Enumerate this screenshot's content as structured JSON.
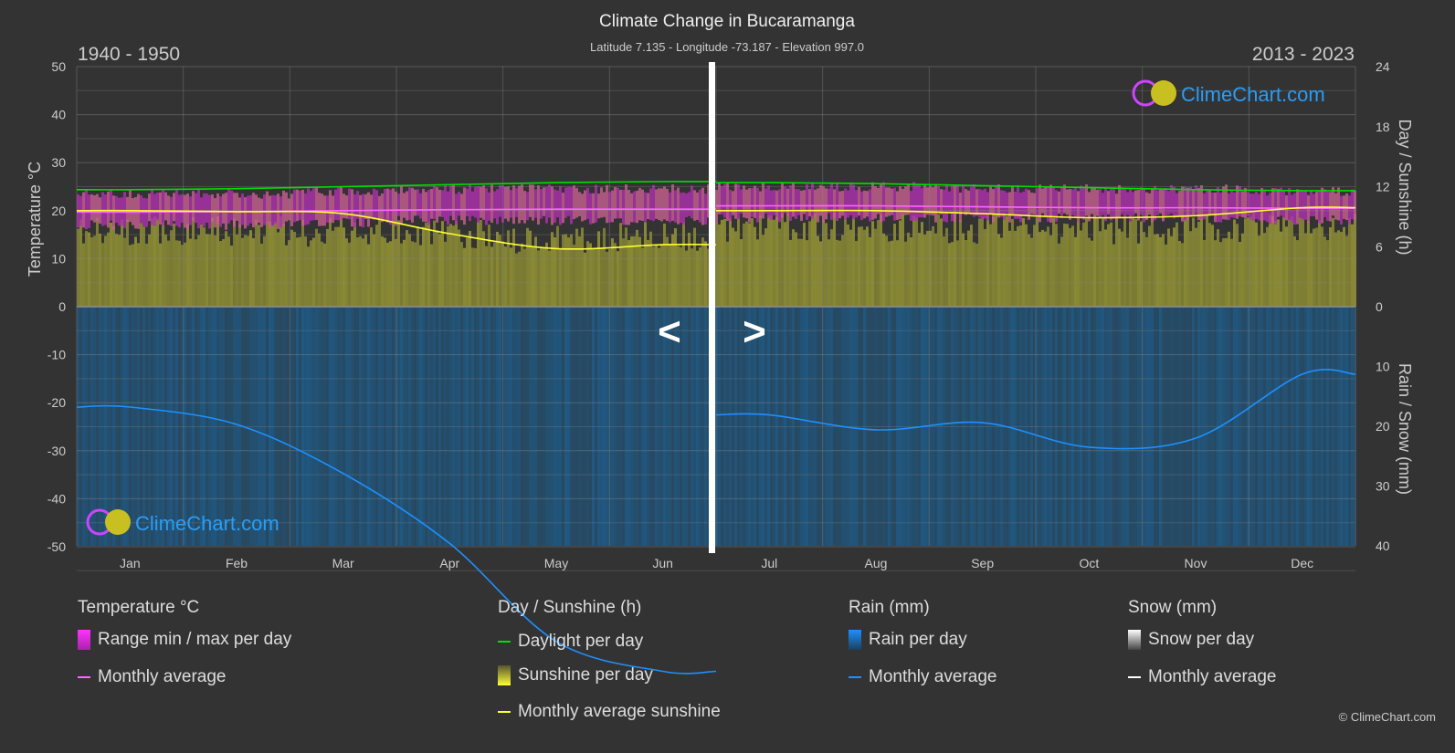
{
  "title": "Climate Change in Bucaramanga",
  "subtitle": "Latitude 7.135 - Longitude -73.187 - Elevation 997.0",
  "period_left": "1940 - 1950",
  "period_right": "2013 - 2023",
  "nav": {
    "prev": "<",
    "next": ">"
  },
  "logo_text": "ClimeChart.com",
  "copyright": "© ClimeChart.com",
  "colors": {
    "background": "#333333",
    "daylight": "#00e000",
    "sunshine": "#ffff33",
    "temp_avg": "#ff66ff",
    "rain": "#1e90ff",
    "range": "#cc33cc"
  },
  "legend": {
    "temperature": {
      "title": "Temperature °C",
      "range": "Range min / max per day",
      "avg": "Monthly average"
    },
    "sun": {
      "title": "Day / Sunshine (h)",
      "daylight": "Daylight per day",
      "sunshine": "Sunshine per day",
      "avg": "Monthly average sunshine"
    },
    "rain": {
      "title": "Rain (mm)",
      "per_day": "Rain per day",
      "avg": "Monthly average"
    },
    "snow": {
      "title": "Snow (mm)",
      "per_day": "Snow per day",
      "avg": "Monthly average"
    }
  },
  "chart_data": {
    "type": "line",
    "title": "Climate Change in Bucaramanga",
    "categories": [
      "Jan",
      "Feb",
      "Mar",
      "Apr",
      "May",
      "Jun",
      "Jul",
      "Aug",
      "Sep",
      "Oct",
      "Nov",
      "Dec"
    ],
    "ylabel_left": "Temperature °C",
    "ylabel_right_top": "Day / Sunshine (h)",
    "ylabel_right_bottom": "Rain / Snow (mm)",
    "ylim_temp": [
      -50,
      50
    ],
    "yticks_temp": [
      50,
      40,
      30,
      20,
      10,
      0,
      -10,
      -20,
      -30,
      -40,
      -50
    ],
    "ylim_sun": [
      0,
      24
    ],
    "yticks_sun": [
      24,
      18,
      12,
      6,
      0
    ],
    "ylim_rain": [
      0,
      40
    ],
    "yticks_rain": [
      0,
      10,
      20,
      30,
      40
    ],
    "grid": true,
    "split": "Jan-Jun shows 1940 - 1950, Jul-Dec shows 2013 - 2023",
    "series": [
      {
        "name": "Daylight per day",
        "unit": "h",
        "values": [
          11.7,
          11.8,
          12.0,
          12.2,
          12.4,
          12.5,
          12.4,
          12.3,
          12.1,
          11.9,
          11.7,
          11.6
        ]
      },
      {
        "name": "Monthly average sunshine",
        "unit": "h",
        "values": [
          9.6,
          9.5,
          9.3,
          7.3,
          5.8,
          6.2,
          9.6,
          9.6,
          9.3,
          8.9,
          9.1,
          9.9
        ]
      },
      {
        "name": "Monthly average",
        "unit": "°C",
        "values": [
          19.7,
          19.8,
          20.0,
          20.2,
          20.3,
          20.3,
          21.0,
          21.0,
          20.8,
          20.6,
          20.6,
          20.5
        ]
      },
      {
        "name": "Range min / max per day",
        "unit": "°C",
        "min": [
          17,
          17,
          17.5,
          18,
          18,
          18,
          18.5,
          18.5,
          18.5,
          18.5,
          18.5,
          18
        ],
        "max": [
          23.5,
          23.5,
          24,
          24.5,
          24.5,
          24.5,
          25,
          25,
          24.5,
          24.5,
          24.5,
          24
        ]
      },
      {
        "name": "Sunshine per day",
        "unit": "h",
        "values": [
          7.6,
          7.6,
          7.5,
          7.3,
          6.8,
          7,
          8,
          8,
          7.8,
          7.6,
          7.7,
          8
        ]
      },
      {
        "name": "Rain monthly average",
        "unit": "mm",
        "values": [
          16.8,
          19.7,
          27.9,
          39.6,
          56,
          61,
          18.1,
          20.6,
          19.4,
          23.5,
          22,
          11.3
        ]
      }
    ]
  }
}
